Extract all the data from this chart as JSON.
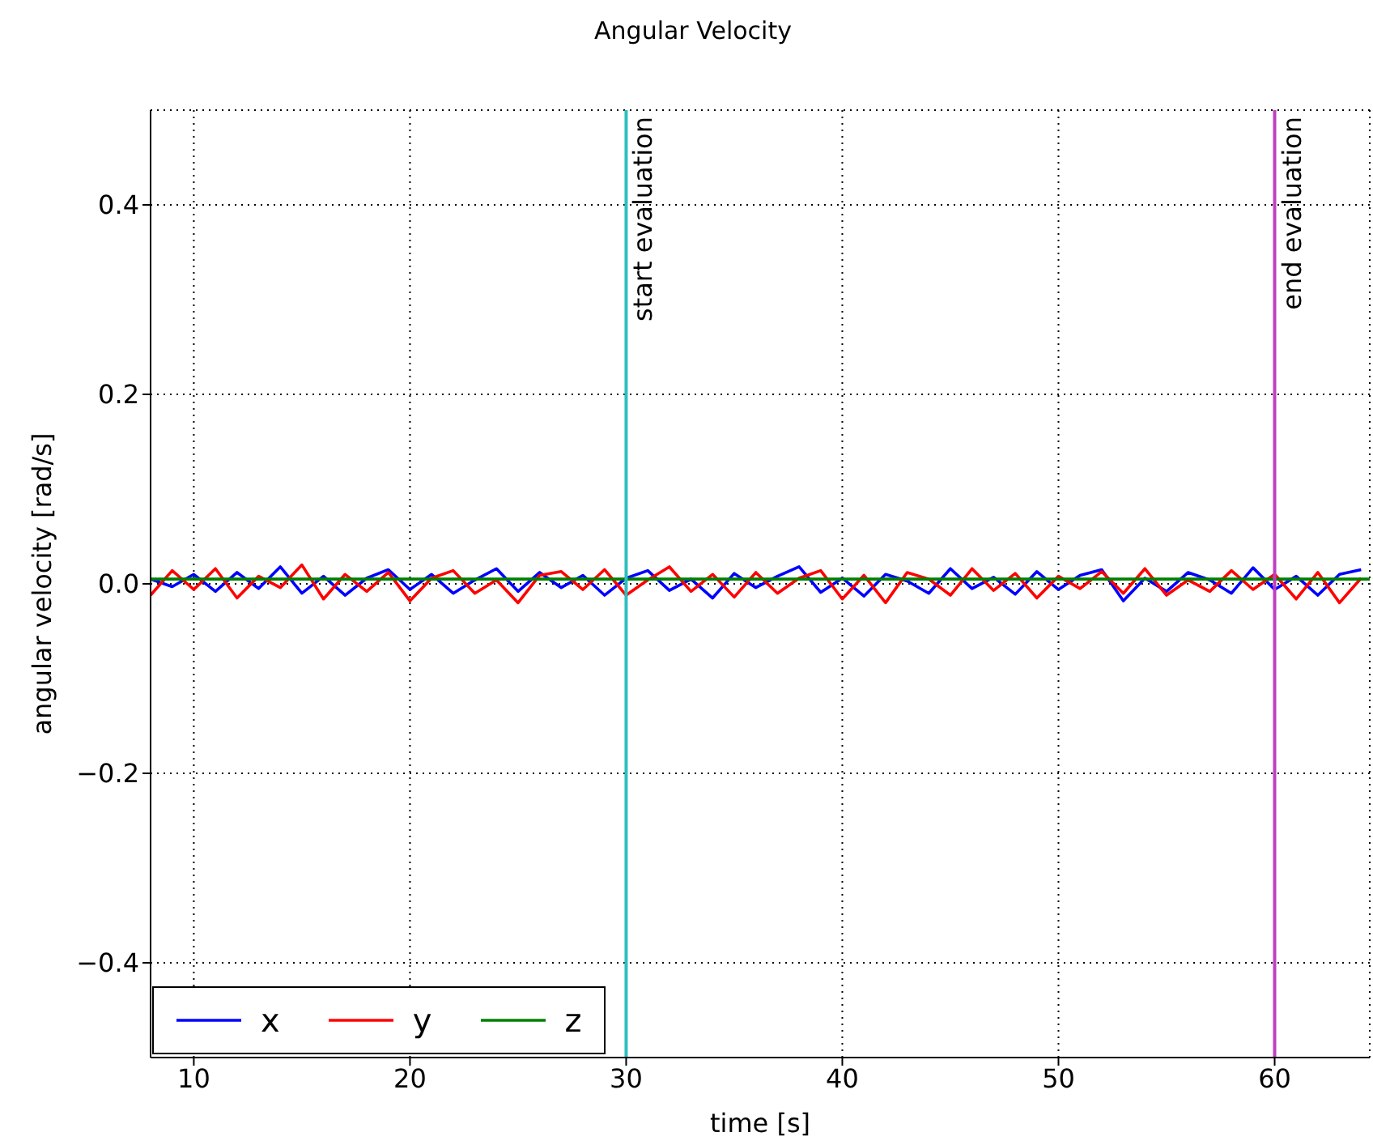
{
  "chart_data": {
    "type": "line",
    "title": "Angular Velocity",
    "xlabel": "time [s]",
    "ylabel": "angular velocity [rad/s]",
    "x": [
      8,
      9,
      10,
      11,
      12,
      13,
      14,
      15,
      16,
      17,
      18,
      19,
      20,
      21,
      22,
      23,
      24,
      25,
      26,
      27,
      28,
      29,
      30,
      31,
      32,
      33,
      34,
      35,
      36,
      37,
      38,
      39,
      40,
      41,
      42,
      43,
      44,
      45,
      46,
      47,
      48,
      49,
      50,
      51,
      52,
      53,
      54,
      55,
      56,
      57,
      58,
      59,
      60,
      61,
      62,
      63,
      64
    ],
    "series": [
      {
        "name": "x",
        "color": "#0000ff",
        "values": [
          0.005,
          -0.003,
          0.01,
          -0.008,
          0.012,
          -0.005,
          0.018,
          -0.01,
          0.008,
          -0.012,
          0.006,
          0.015,
          -0.006,
          0.01,
          -0.01,
          0.004,
          0.016,
          -0.008,
          0.012,
          -0.004,
          0.009,
          -0.012,
          0.006,
          0.014,
          -0.007,
          0.005,
          -0.015,
          0.011,
          -0.004,
          0.008,
          0.018,
          -0.009,
          0.006,
          -0.013,
          0.01,
          0.003,
          -0.01,
          0.016,
          -0.005,
          0.007,
          -0.011,
          0.013,
          -0.006,
          0.009,
          0.015,
          -0.018,
          0.006,
          -0.008,
          0.012,
          0.004,
          -0.01,
          0.017,
          -0.006,
          0.008,
          -0.012,
          0.01,
          0.015
        ]
      },
      {
        "name": "y",
        "color": "#ff0000",
        "values": [
          -0.012,
          0.014,
          -0.006,
          0.016,
          -0.015,
          0.008,
          -0.004,
          0.02,
          -0.016,
          0.01,
          -0.008,
          0.012,
          -0.018,
          0.006,
          0.014,
          -0.01,
          0.004,
          -0.02,
          0.009,
          0.013,
          -0.006,
          0.015,
          -0.012,
          0.004,
          0.018,
          -0.008,
          0.01,
          -0.014,
          0.012,
          -0.01,
          0.006,
          0.014,
          -0.016,
          0.009,
          -0.02,
          0.012,
          0.005,
          -0.012,
          0.016,
          -0.007,
          0.011,
          -0.015,
          0.008,
          -0.005,
          0.013,
          -0.01,
          0.016,
          -0.012,
          0.004,
          -0.008,
          0.014,
          -0.006,
          0.01,
          -0.016,
          0.012,
          -0.02,
          0.006
        ]
      },
      {
        "name": "z",
        "color": "#008000",
        "x": [
          8,
          64.4
        ],
        "values": [
          0.005,
          0.005
        ]
      }
    ],
    "xlim": [
      8,
      64.4
    ],
    "xticks": [
      10,
      20,
      30,
      40,
      50,
      60
    ],
    "ylim": [
      -0.5,
      0.5
    ],
    "yticks": [
      {
        "value": -0.4,
        "label": "−0.4"
      },
      {
        "value": -0.2,
        "label": "−0.2"
      },
      {
        "value": 0,
        "label": "0.0"
      },
      {
        "value": 0.2,
        "label": "0.2"
      },
      {
        "value": 0.4,
        "label": "0.4"
      }
    ],
    "ref_lines": [
      {
        "axis": "x",
        "value": 30,
        "label": "start evaluation",
        "color": "#2ebfbf"
      },
      {
        "axis": "x",
        "value": 60,
        "label": "end evaluation",
        "color": "#bf3fbf"
      }
    ],
    "grid": true,
    "legend": "bottom left",
    "marker": "none",
    "line_style": "solid"
  }
}
